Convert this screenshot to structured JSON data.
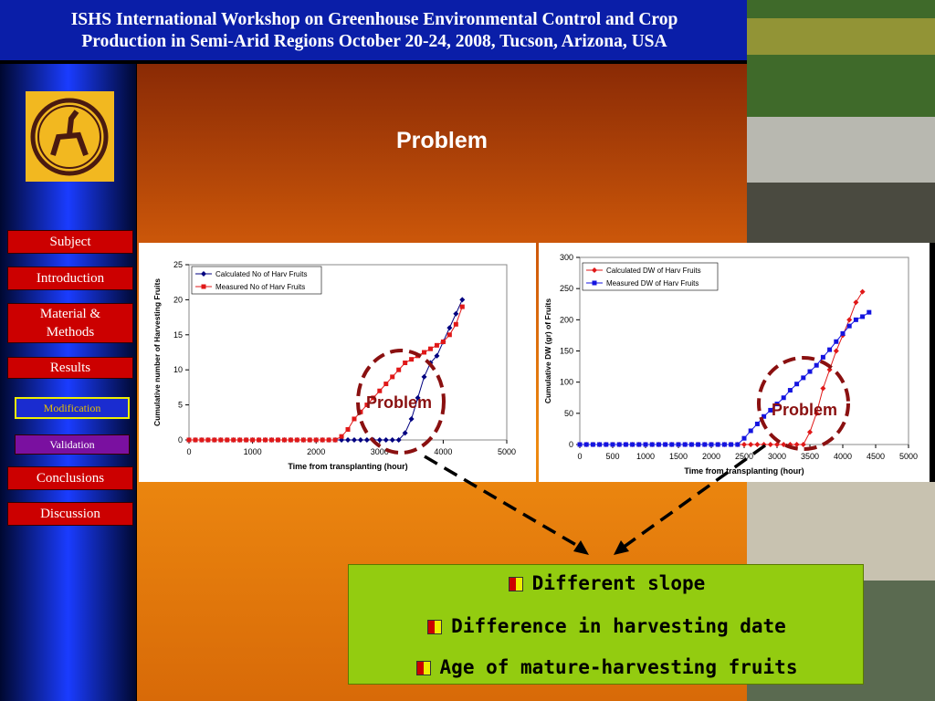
{
  "header": {
    "title_line1": "ISHS International Workshop on Greenhouse Environmental Control and Crop",
    "title_line2": "Production in Semi-Arid Regions October 20-24, 2008, Tucson, Arizona, USA"
  },
  "slide_title": "Problem",
  "nav": [
    "Subject",
    "Introduction",
    "Material & Methods",
    "Results",
    "Modification",
    "Validation",
    "Conclusions",
    "Discussion"
  ],
  "annotations": [
    "Problem",
    "Problem"
  ],
  "bullets": [
    "Different slope",
    "Difference in harvesting date",
    "Age of mature-harvesting fruits"
  ],
  "chart_data": [
    {
      "type": "line",
      "x_label": "Time from transplanting (hour)",
      "y_label": "Cumulative number of Harvesting Fruits",
      "x": [
        0,
        100,
        200,
        300,
        400,
        500,
        600,
        700,
        800,
        900,
        1000,
        1100,
        1200,
        1300,
        1400,
        1500,
        1600,
        1700,
        1800,
        1900,
        2000,
        2100,
        2200,
        2300,
        2400,
        2500,
        2600,
        2700,
        2800,
        2900,
        3000,
        3100,
        3200,
        3300,
        3400,
        3500,
        3600,
        3700,
        3800,
        3900,
        4000,
        4100,
        4200,
        4300
      ],
      "xlim": [
        0,
        5000
      ],
      "xticks": [
        0,
        1000,
        2000,
        3000,
        4000,
        5000
      ],
      "ylim": [
        0,
        25
      ],
      "yticks": [
        0,
        5,
        10,
        15,
        20,
        25
      ],
      "grid": false,
      "series": [
        {
          "name": "Calculated No of Harv Fruits",
          "color": "#000080",
          "marker": "diamond",
          "values": [
            0,
            0,
            0,
            0,
            0,
            0,
            0,
            0,
            0,
            0,
            0,
            0,
            0,
            0,
            0,
            0,
            0,
            0,
            0,
            0,
            0,
            0,
            0,
            0,
            0,
            0,
            0,
            0,
            0,
            0,
            0,
            0,
            0,
            0,
            1,
            3,
            6,
            9,
            11,
            12,
            14,
            16,
            18,
            20
          ]
        },
        {
          "name": "Measured No of Harv Fruits",
          "color": "#e01818",
          "marker": "square",
          "values": [
            0,
            0,
            0,
            0,
            0,
            0,
            0,
            0,
            0,
            0,
            0,
            0,
            0,
            0,
            0,
            0,
            0,
            0,
            0,
            0,
            0,
            0,
            0,
            0,
            0.5,
            1.5,
            3,
            4,
            5,
            6,
            7,
            8,
            9,
            10,
            11,
            11.5,
            12,
            12.5,
            13,
            13.5,
            14,
            15,
            16.5,
            19
          ]
        }
      ]
    },
    {
      "type": "line",
      "x_label": "Time from transplanting (hour)",
      "y_label": "Cumulative DW (gr) of Fruits",
      "x": [
        0,
        100,
        200,
        300,
        400,
        500,
        600,
        700,
        800,
        900,
        1000,
        1100,
        1200,
        1300,
        1400,
        1500,
        1600,
        1700,
        1800,
        1900,
        2000,
        2100,
        2200,
        2300,
        2400,
        2500,
        2600,
        2700,
        2800,
        2900,
        3000,
        3100,
        3200,
        3300,
        3400,
        3500,
        3600,
        3700,
        3800,
        3900,
        4000,
        4100,
        4200,
        4300,
        4400
      ],
      "xlim": [
        0,
        5000
      ],
      "xticks": [
        0,
        500,
        1000,
        1500,
        2000,
        2500,
        3000,
        3500,
        4000,
        4500,
        5000
      ],
      "ylim": [
        0,
        300
      ],
      "yticks": [
        0,
        50,
        100,
        150,
        200,
        250,
        300
      ],
      "grid": false,
      "series": [
        {
          "name": "Calculated DW of Harv Fruits",
          "color": "#e01818",
          "marker": "diamond",
          "values": [
            0,
            0,
            0,
            0,
            0,
            0,
            0,
            0,
            0,
            0,
            0,
            0,
            0,
            0,
            0,
            0,
            0,
            0,
            0,
            0,
            0,
            0,
            0,
            0,
            0,
            0,
            0,
            0,
            0,
            0,
            0,
            0,
            0,
            0,
            0,
            20,
            50,
            90,
            120,
            150,
            175,
            200,
            228,
            245,
            null
          ]
        },
        {
          "name": "Measured DW of Harv Fruits",
          "color": "#1414e0",
          "marker": "square",
          "values": [
            0,
            0,
            0,
            0,
            0,
            0,
            0,
            0,
            0,
            0,
            0,
            0,
            0,
            0,
            0,
            0,
            0,
            0,
            0,
            0,
            0,
            0,
            0,
            0,
            0,
            10,
            22,
            33,
            45,
            55,
            65,
            75,
            87,
            97,
            107,
            117,
            127,
            140,
            152,
            165,
            178,
            190,
            200,
            205,
            212
          ]
        }
      ]
    }
  ]
}
